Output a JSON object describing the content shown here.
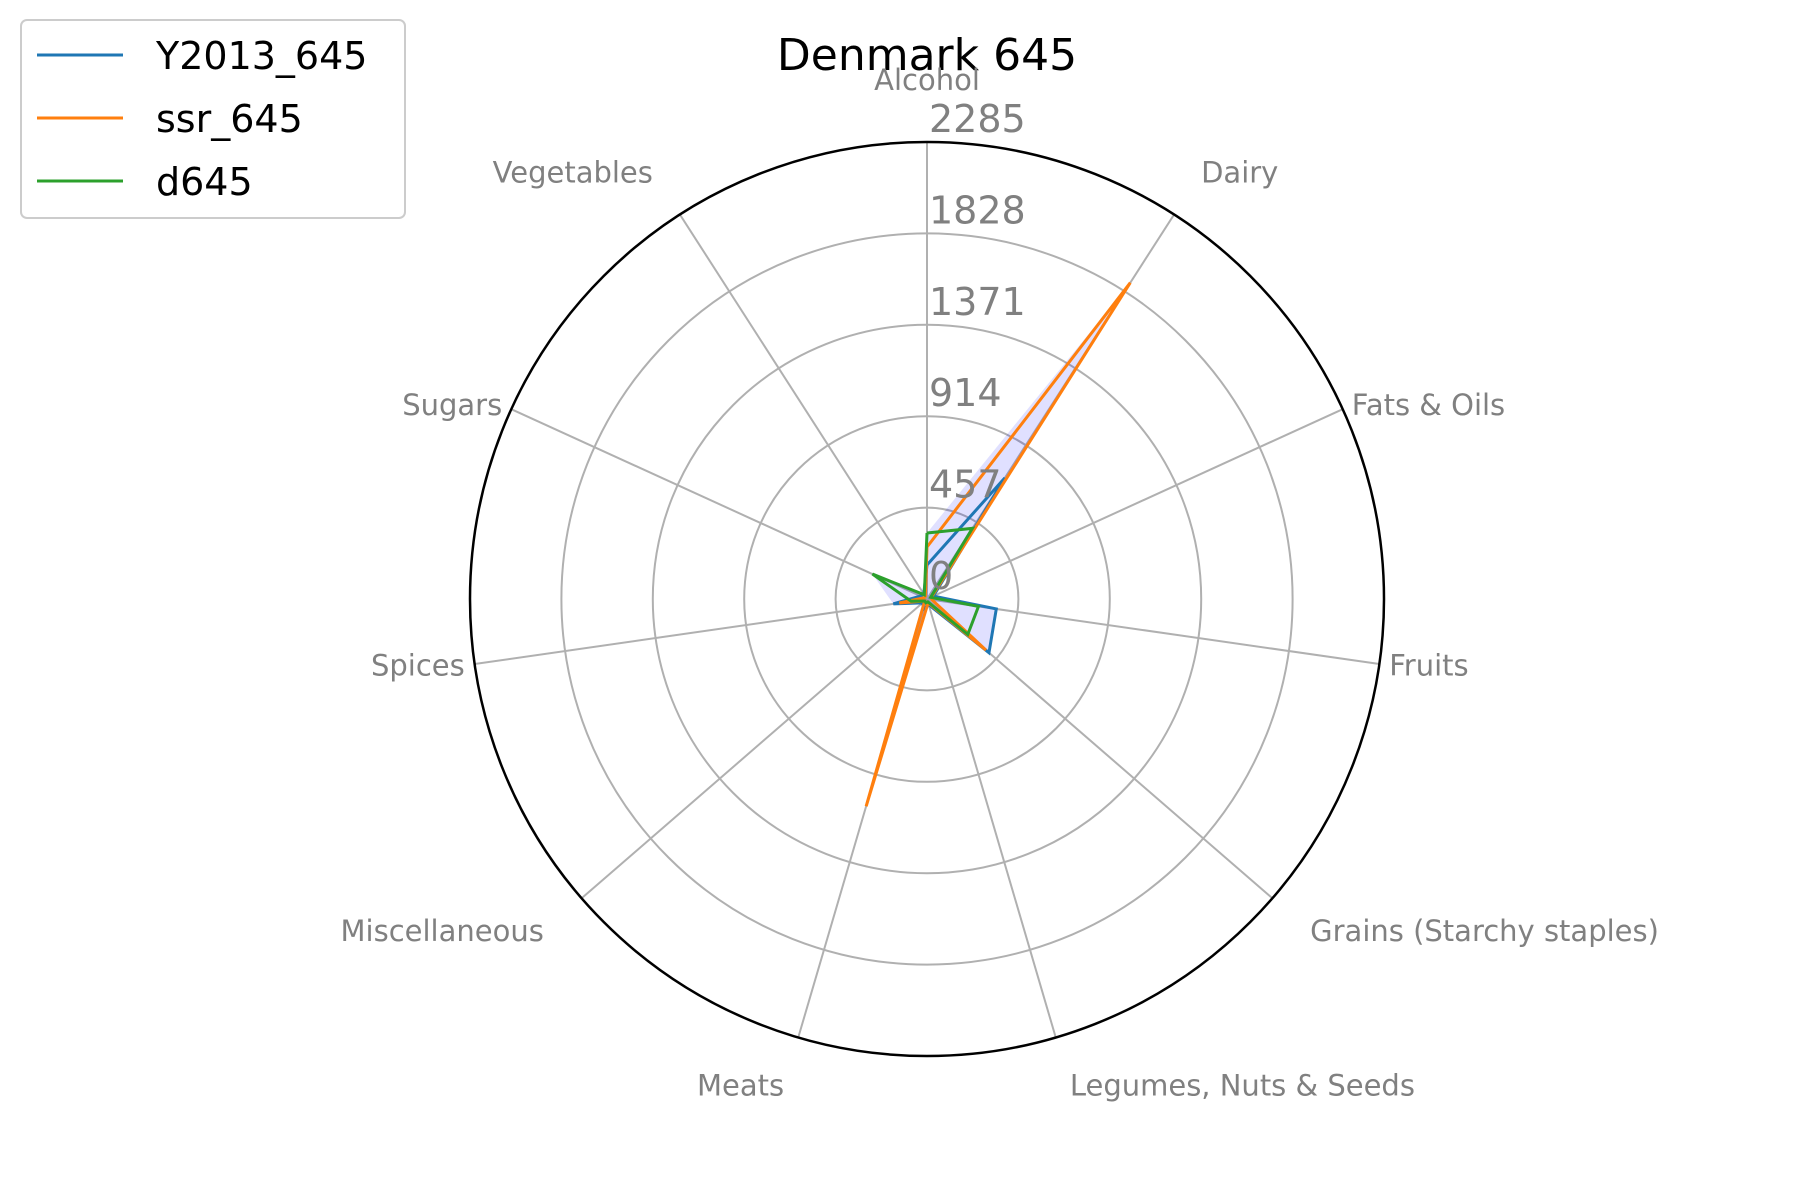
{
  "chart_data": {
    "type": "radar",
    "title": "Denmark 645",
    "categories": [
      "Alcohol",
      "Dairy",
      "Fats & Oils",
      "Fruits",
      "Grains (Starchy staples)",
      "Legumes, Nuts & Seeds",
      "Meats",
      "Miscellaneous",
      "Spices",
      "Sugars",
      "Vegetables"
    ],
    "r_ticks": [
      0,
      457,
      914,
      1371,
      1828,
      2285
    ],
    "r_max": 2285,
    "fill_color": "#0000ff",
    "series": [
      {
        "name": "Y2013_645",
        "color": "#1f77b4",
        "values": [
          170,
          720,
          35,
          350,
          410,
          30,
          50,
          30,
          170,
          35,
          30
        ]
      },
      {
        "name": "ssr_645",
        "color": "#ff7f0e",
        "values": [
          260,
          1880,
          25,
          25,
          390,
          20,
          1080,
          15,
          140,
          15,
          15
        ]
      },
      {
        "name": "d645",
        "color": "#2ca02c",
        "values": [
          330,
          420,
          20,
          260,
          270,
          15,
          20,
          15,
          80,
          300,
          25
        ]
      }
    ],
    "legend_position": "top-left"
  }
}
